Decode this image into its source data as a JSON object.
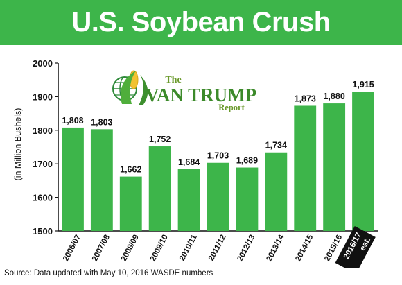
{
  "banner": {
    "title": "U.S. Soybean Crush"
  },
  "logo": {
    "the": "The",
    "main": "VAN TRUMP",
    "sub": "Report"
  },
  "source": "Source: Data updated with May 10, 2016 WASDE numbers",
  "colors": {
    "banner": "#3db54a",
    "bar": "#3db54a",
    "highlight_label_bg": "#111111"
  },
  "chart_data": {
    "type": "bar",
    "title": "U.S. Soybean Crush",
    "ylabel": "(in Million Bushels)",
    "xlabel": "",
    "ylim": [
      1500,
      2000
    ],
    "yticks": [
      1500,
      1600,
      1700,
      1800,
      1900,
      2000
    ],
    "grid": false,
    "categories": [
      "2006/07",
      "2007/08",
      "2008/09",
      "2009/10",
      "2010/11",
      "2011/12",
      "2012/13",
      "2013/14",
      "2014/15",
      "2015/16",
      "2016/17 est."
    ],
    "values": [
      1808,
      1803,
      1662,
      1752,
      1684,
      1703,
      1689,
      1734,
      1873,
      1880,
      1915
    ],
    "value_labels": [
      "1,808",
      "1,803",
      "1,662",
      "1,752",
      "1,684",
      "1,703",
      "1,689",
      "1,734",
      "1,873",
      "1,880",
      "1,915"
    ],
    "highlighted_category": "2016/17 est."
  }
}
